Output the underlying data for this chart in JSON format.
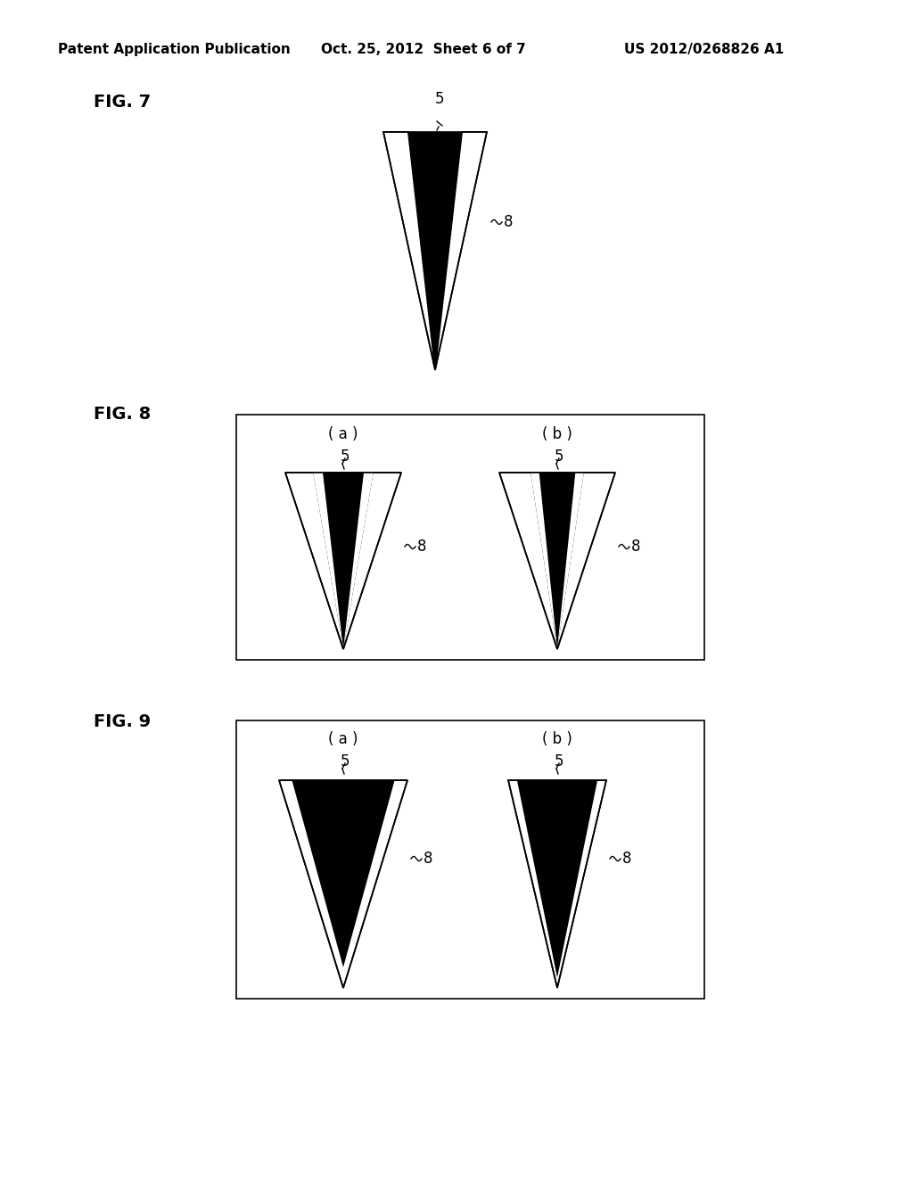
{
  "bg_color": "#ffffff",
  "header_left": "Patent Application Publication",
  "header_center": "Oct. 25, 2012  Sheet 6 of 7",
  "header_right": "US 2012/0268826 A1",
  "fig7_label": "FIG. 7",
  "fig8_label": "FIG. 8",
  "fig9_label": "FIG. 9",
  "label_5": "5",
  "label_8": "8",
  "label_a": "( a )",
  "label_b": "( b )",
  "header_fontsize": 11,
  "fig_label_fontsize": 14,
  "annot_fontsize": 12
}
